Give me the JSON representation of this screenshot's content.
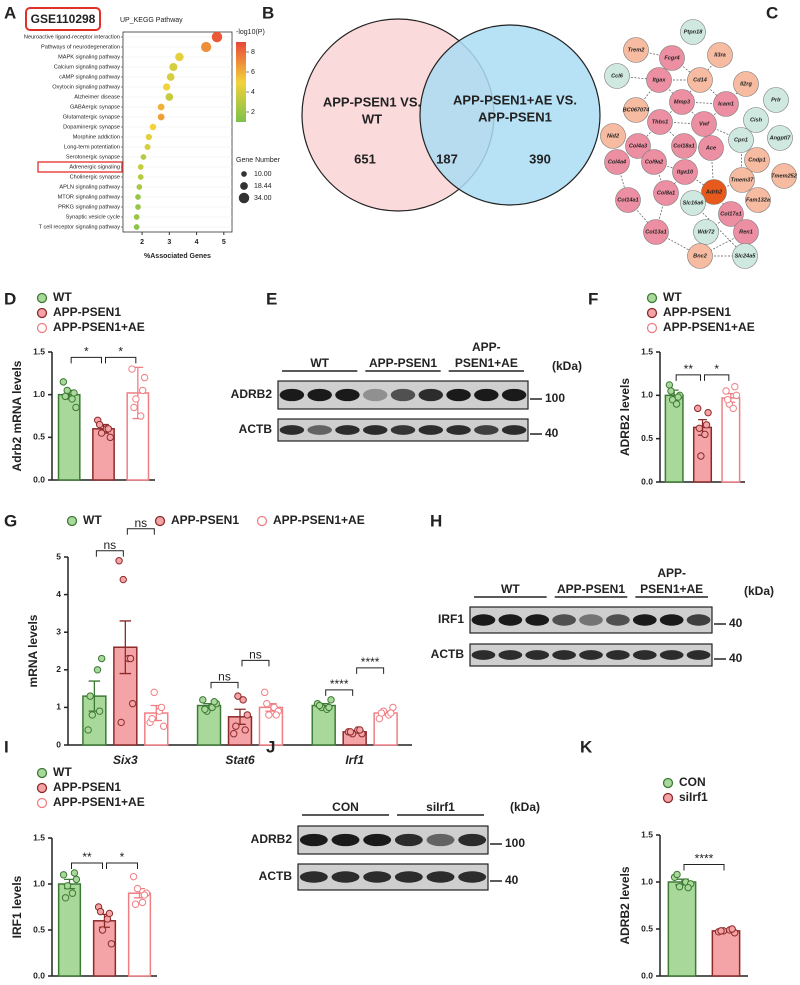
{
  "chart_data": [
    {
      "panel": "A",
      "type": "dotplot",
      "badge": "GSE110298",
      "title": "UP_KEGG Pathway",
      "categories": [
        "Neuroactive ligand-receptor interaction",
        "Pathways of neurodegeneration",
        "MAPK signaling pathway",
        "Calcium signaling pathway",
        "cAMP signaling pathway",
        "Oxytocin signaling pathway",
        "Alzheimer disease",
        "GABAergic synapse",
        "Glutamatergic synapse",
        "Dopaminergic synapse",
        "Morphine addiction",
        "Long-term potentiation",
        "Serotonergic synapse",
        "Adrenergic signaling",
        "Cholinergic synapse",
        "APLN signaling pathway",
        "MTOR signaling pathway",
        "PRKG signaling pathway",
        "Synaptic vesicle cycle",
        "T cell receptor signaling pathway"
      ],
      "values": [
        4.75,
        4.35,
        3.37,
        3.15,
        3.05,
        2.9,
        3.0,
        2.7,
        2.7,
        2.4,
        2.25,
        2.2,
        2.05,
        1.95,
        1.95,
        1.9,
        1.85,
        1.85,
        1.8,
        1.8
      ],
      "neglog10p": [
        8.5,
        7.0,
        4.5,
        4.0,
        4.0,
        5.0,
        3.5,
        6.0,
        6.5,
        5.0,
        4.5,
        4.0,
        3.0,
        3.5,
        3.0,
        2.5,
        2.0,
        2.0,
        2.0,
        1.5
      ],
      "gene_number": [
        34,
        32,
        22,
        20,
        18,
        16,
        18,
        14,
        14,
        13,
        12,
        11,
        10,
        10,
        10,
        10,
        10,
        10,
        10,
        10
      ],
      "highlight": 13,
      "xlabel": "%Associated Genes",
      "xlim": [
        1.3,
        5.3
      ],
      "xticks": [
        2,
        3,
        4,
        5
      ],
      "color_title": "-log10(P)",
      "clim": [
        1,
        9
      ],
      "cticks": [
        2,
        4,
        6,
        8
      ],
      "cmap": [
        "#7cc24a",
        "#f3d23a",
        "#e8483a"
      ],
      "size_title": "Gene Number",
      "size_ticks": [
        {
          "value": 10,
          "label": "10.00"
        },
        18.44,
        {
          "value": 34,
          "label": "34.00"
        }
      ]
    },
    {
      "panel": "B",
      "type": "venn",
      "sets": [
        {
          "label": [
            "APP-PSEN1 VS.",
            "WT"
          ],
          "color": "#fbdadb"
        },
        {
          "label": [
            "APP-PSEN1+AE VS.",
            "APP-PSEN1"
          ],
          "color": "#aadcf3"
        }
      ],
      "values": [
        651,
        187,
        390
      ]
    },
    {
      "panel": "C",
      "type": "network",
      "nodes": [
        {
          "label": "Ptpn18",
          "color": "#cfe9e1"
        },
        {
          "label": "Trem2",
          "color": "#f6bba0"
        },
        {
          "label": "Fcgr4",
          "color": "#ec8fa2"
        },
        {
          "label": "Il3ra",
          "color": "#f6bba0"
        },
        {
          "label": "Ccl6",
          "color": "#cfe9e1"
        },
        {
          "label": "Itgax",
          "color": "#ec8fa2"
        },
        {
          "label": "Cd14",
          "color": "#f6bba0"
        },
        {
          "label": "Il2rg",
          "color": "#f6bba0"
        },
        {
          "label": "Prlr",
          "color": "#cfe9e1"
        },
        {
          "label": "Mmp3",
          "color": "#ec8fa2"
        },
        {
          "label": "Icam1",
          "color": "#ec8fa2"
        },
        {
          "label": "Cish",
          "color": "#cfe9e1"
        },
        {
          "label": "BC067074",
          "color": "#f6bba0"
        },
        {
          "label": "Thbs1",
          "color": "#ec8fa2"
        },
        {
          "label": "Vwf",
          "color": "#ec8fa2"
        },
        {
          "label": "Angptl7",
          "color": "#cfe9e1"
        },
        {
          "label": "Nid2",
          "color": "#f6bba0"
        },
        {
          "label": "Cpn1",
          "color": "#cfe9e1"
        },
        {
          "label": "Cndp1",
          "color": "#f6bba0"
        },
        {
          "label": "Col4a3",
          "color": "#ec8fa2"
        },
        {
          "label": "Col18a1",
          "color": "#ec8fa2"
        },
        {
          "label": "Ace",
          "color": "#ec8fa2"
        },
        {
          "label": "Col4a4",
          "color": "#ec8fa2"
        },
        {
          "label": "Col9a2",
          "color": "#ec8fa2"
        },
        {
          "label": "Itga10",
          "color": "#ec8fa2"
        },
        {
          "label": "Tmem37",
          "color": "#f6bba0"
        },
        {
          "label": "Tmem252",
          "color": "#f6bba0"
        },
        {
          "label": "Adrb2",
          "color": "#e85a1c"
        },
        {
          "label": "Col8a1",
          "color": "#ec8fa2"
        },
        {
          "label": "Slc16a6",
          "color": "#cfe9e1"
        },
        {
          "label": "Fam132a",
          "color": "#f6bba0"
        },
        {
          "label": "Col14a1",
          "color": "#ec8fa2"
        },
        {
          "label": "Col17a1",
          "color": "#ec8fa2"
        },
        {
          "label": "Ren1",
          "color": "#ec8fa2"
        },
        {
          "label": "Wdr72",
          "color": "#cfe9e1"
        },
        {
          "label": "Col13a1",
          "color": "#ec8fa2"
        },
        {
          "label": "Bnc2",
          "color": "#f6bba0"
        },
        {
          "label": "Slc24a5",
          "color": "#cfe9e1"
        }
      ]
    },
    {
      "panel": "D",
      "type": "bar",
      "ylabel": "Adrb2 mRNA levels",
      "ylim": [
        0,
        1.5
      ],
      "yticks": [
        {
          "value": 0,
          "label": "0.0"
        },
        {
          "value": 0.5,
          "label": "0.5"
        },
        {
          "value": 1,
          "label": "1.0"
        },
        {
          "value": 1.5,
          "label": "1.5"
        }
      ],
      "series": [
        {
          "name": "WT",
          "color": "#a9d89b",
          "edge": "#3d7a35",
          "value": 1.0,
          "error": 0.05,
          "points": [
            1.15,
            1.05,
            0.95,
            0.85,
            0.98,
            1.02
          ]
        },
        {
          "name": "APP-PSEN1",
          "color": "#f4a3a6",
          "edge": "#8c2a2a",
          "value": 0.6,
          "error": 0.05,
          "points": [
            0.7,
            0.55,
            0.6,
            0.5,
            0.65,
            0.6
          ]
        },
        {
          "name": "APP-PSEN1+AE",
          "color": "#ffffff",
          "edge": "#f07f84",
          "value": 1.02,
          "error": 0.3,
          "points": [
            1.3,
            0.95,
            0.75,
            1.2,
            0.85,
            1.05
          ]
        }
      ],
      "brackets": [
        {
          "from": 0,
          "to": 1,
          "label": "*"
        },
        {
          "from": 1,
          "to": 2,
          "label": "*"
        }
      ]
    },
    {
      "panel": "E",
      "type": "blot",
      "groups": [
        [
          "WT"
        ],
        [
          "APP-PSEN1"
        ],
        [
          "APP-",
          "PSEN1+AE"
        ]
      ],
      "rows": [
        "ADRB2",
        "ACTB"
      ],
      "markers": [
        100,
        40
      ],
      "unit": "(kDa)"
    },
    {
      "panel": "F",
      "type": "bar",
      "ylabel": "ADRB2 levels",
      "ylim": [
        0,
        1.5
      ],
      "yticks": [
        {
          "value": 0,
          "label": "0.0"
        },
        {
          "value": 0.5,
          "label": "0.5"
        },
        {
          "value": 1,
          "label": "1.0"
        },
        {
          "value": 1.5,
          "label": "1.5"
        }
      ],
      "series": [
        {
          "name": "WT",
          "color": "#a9d89b",
          "edge": "#3d7a35",
          "value": 1.0,
          "error": 0.06,
          "points": [
            1.12,
            0.95,
            0.9,
            1.0,
            1.05,
            0.98
          ]
        },
        {
          "name": "APP-PSEN1",
          "color": "#f4a3a6",
          "edge": "#8c2a2a",
          "value": 0.63,
          "error": 0.09,
          "points": [
            0.85,
            0.3,
            0.55,
            0.8,
            0.62,
            0.66
          ]
        },
        {
          "name": "APP-PSEN1+AE",
          "color": "#ffffff",
          "edge": "#f07f84",
          "value": 0.97,
          "error": 0.05,
          "points": [
            1.05,
            0.9,
            0.85,
            1.0,
            0.95,
            1.1
          ]
        }
      ],
      "brackets": [
        {
          "from": 0,
          "to": 1,
          "label": "**"
        },
        {
          "from": 1,
          "to": 2,
          "label": "*"
        }
      ]
    },
    {
      "panel": "G",
      "type": "grouped",
      "ylabel": "mRNA levels",
      "categories": [
        "Six3",
        "Stat6",
        "Irf1"
      ],
      "ylim": [
        0,
        5
      ],
      "yticks": [
        0,
        1,
        2,
        3,
        4,
        5
      ],
      "series": [
        {
          "name": "WT",
          "color": "#a9d89b",
          "edge": "#3d7a35",
          "values": [
            1.3,
            1.05,
            1.05
          ],
          "errors": [
            0.4,
            0.05,
            0.05
          ],
          "points": [
            [
              0.4,
              0.8,
              2.0,
              2.3,
              1.3,
              0.9
            ],
            [
              1.2,
              0.9,
              1.0,
              1.1,
              0.95,
              1.15
            ],
            [
              1.1,
              1.0,
              0.95,
              1.2,
              1.05,
              1.0
            ]
          ]
        },
        {
          "name": "APP-PSEN1",
          "color": "#f4a3a6",
          "edge": "#8c2a2a",
          "values": [
            2.6,
            0.75,
            0.35
          ],
          "errors": [
            0.7,
            0.2,
            0.03
          ],
          "points": [
            [
              4.9,
              4.4,
              2.3,
              1.1,
              0.6,
              2.3
            ],
            [
              0.3,
              1.3,
              1.2,
              0.8,
              0.5,
              0.4
            ],
            [
              0.35,
              0.3,
              0.4,
              0.3,
              0.35,
              0.4
            ]
          ]
        },
        {
          "name": "APP-PSEN1+AE",
          "color": "#ffffff",
          "edge": "#f07f84",
          "values": [
            0.85,
            1.0,
            0.85
          ],
          "errors": [
            0.2,
            0.1,
            0.05
          ],
          "points": [
            [
              0.6,
              1.4,
              0.9,
              0.5,
              0.7,
              1.0
            ],
            [
              1.4,
              0.8,
              1.0,
              0.9,
              1.1,
              0.8
            ],
            [
              0.7,
              0.9,
              0.8,
              1.0,
              0.85,
              0.85
            ]
          ]
        }
      ],
      "brackets": [
        {
          "category": 0,
          "from": 0,
          "to": 1,
          "label": "ns"
        },
        {
          "category": 0,
          "from": 1,
          "to": 2,
          "label": "ns"
        },
        {
          "category": 1,
          "from": 0,
          "to": 1,
          "label": "ns"
        },
        {
          "category": 1,
          "from": 1,
          "to": 2,
          "label": "ns"
        },
        {
          "category": 2,
          "from": 0,
          "to": 1,
          "label": "****"
        },
        {
          "category": 2,
          "from": 1,
          "to": 2,
          "label": "****"
        }
      ]
    },
    {
      "panel": "H",
      "type": "blot",
      "groups": [
        [
          "WT"
        ],
        [
          "APP-PSEN1"
        ],
        [
          "APP-",
          "PSEN1+AE"
        ]
      ],
      "rows": [
        "IRF1",
        "ACTB"
      ],
      "markers": [
        40,
        40
      ],
      "unit": "(kDa)"
    },
    {
      "panel": "I",
      "type": "bar",
      "ylabel": "IRF1 levels",
      "ylim": [
        0,
        1.5
      ],
      "yticks": [
        {
          "value": 0,
          "label": "0.0"
        },
        {
          "value": 0.5,
          "label": "0.5"
        },
        {
          "value": 1,
          "label": "1.0"
        },
        {
          "value": 1.5,
          "label": "1.5"
        }
      ],
      "series": [
        {
          "name": "WT",
          "color": "#a9d89b",
          "edge": "#3d7a35",
          "value": 1.0,
          "error": 0.05,
          "points": [
            1.1,
            0.98,
            0.9,
            1.05,
            0.85,
            1.12
          ]
        },
        {
          "name": "APP-PSEN1",
          "color": "#f4a3a6",
          "edge": "#8c2a2a",
          "value": 0.6,
          "error": 0.07,
          "points": [
            0.75,
            0.5,
            0.62,
            0.35,
            0.7,
            0.68
          ]
        },
        {
          "name": "APP-PSEN1+AE",
          "color": "#ffffff",
          "edge": "#f07f84",
          "value": 0.9,
          "error": 0.05,
          "points": [
            1.08,
            0.95,
            0.8,
            0.9,
            0.78,
            0.88
          ]
        }
      ],
      "brackets": [
        {
          "from": 0,
          "to": 1,
          "label": "**"
        },
        {
          "from": 1,
          "to": 2,
          "label": "*"
        }
      ]
    },
    {
      "panel": "J",
      "type": "blot",
      "groups": [
        [
          "CON"
        ],
        [
          "siIrf1"
        ]
      ],
      "rows": [
        "ADRB2",
        "ACTB"
      ],
      "markers": [
        100,
        40
      ],
      "unit": "(kDa)"
    },
    {
      "panel": "K",
      "type": "bar",
      "ylabel": "ADRB2 levels",
      "ylim": [
        0,
        1.5
      ],
      "yticks": [
        {
          "value": 0,
          "label": "0.0"
        },
        {
          "value": 0.5,
          "label": "0.5"
        },
        {
          "value": 1,
          "label": "1.0"
        },
        {
          "value": 1.5,
          "label": "1.5"
        }
      ],
      "series": [
        {
          "name": "CON",
          "color": "#a9d89b",
          "edge": "#3d7a35",
          "value": 1.0,
          "error": 0.03,
          "points": [
            1.05,
            0.95,
            1.0,
            0.98,
            1.08,
            0.94
          ]
        },
        {
          "name": "siIrf1",
          "color": "#f4a3a6",
          "edge": "#8c2a2a",
          "value": 0.48,
          "error": 0.01,
          "points": [
            0.47,
            0.48,
            0.49,
            0.46,
            0.48,
            0.5
          ]
        }
      ],
      "brackets": [
        {
          "from": 0,
          "to": 1,
          "label": "****"
        }
      ]
    }
  ]
}
